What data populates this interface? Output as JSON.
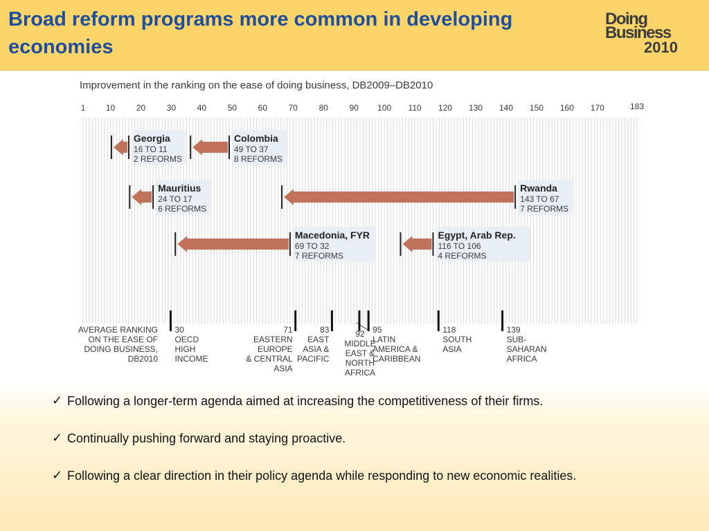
{
  "slide": {
    "title": "Broad reform programs more common in developing economies",
    "logo": {
      "line1": "Doing",
      "line2": "Business",
      "line3": "2010"
    }
  },
  "bullets": [
    {
      "icon": "checkmark-icon",
      "text": "Following a longer-term agenda aimed at increasing the competitiveness of their firms."
    },
    {
      "icon": "checkmark-icon",
      "text": "Continually pushing forward and staying proactive."
    },
    {
      "icon": "checkmark-icon",
      "text": "Following a clear direction in their policy agenda while responding to new economic realities."
    }
  ],
  "chart_data": {
    "type": "range-arrow",
    "title": "Improvement in the ranking on the ease of doing business, DB2009–DB2010",
    "xlim": [
      1,
      183
    ],
    "x_ticks": [
      "1",
      "10",
      "20",
      "30",
      "40",
      "50",
      "60",
      "70",
      "80",
      "90",
      "100",
      "110",
      "120",
      "130",
      "140",
      "150",
      "160",
      "170",
      "183"
    ],
    "grid": true,
    "colors": {
      "arrow": "#c0735a",
      "grid": "#d9d9d9",
      "label_bg": "#e8eef5",
      "text": "#3a3a3a"
    },
    "economies": [
      {
        "name": "Georgia",
        "from": 16,
        "to": 11,
        "rank_text": "16 TO 11",
        "reforms": 2,
        "reforms_text": "2 REFORMS"
      },
      {
        "name": "Colombia",
        "from": 49,
        "to": 37,
        "rank_text": "49 TO 37",
        "reforms": 8,
        "reforms_text": "8 REFORMS"
      },
      {
        "name": "Mauritius",
        "from": 24,
        "to": 17,
        "rank_text": "24 TO 17",
        "reforms": 6,
        "reforms_text": "6 REFORMS"
      },
      {
        "name": "Rwanda",
        "from": 143,
        "to": 67,
        "rank_text": "143 TO 67",
        "reforms": 7,
        "reforms_text": "7 REFORMS"
      },
      {
        "name": "Macedonia, FYR",
        "from": 69,
        "to": 32,
        "rank_text": "69 TO 32",
        "reforms": 7,
        "reforms_text": "7 REFORMS"
      },
      {
        "name": "Egypt, Arab Rep.",
        "from": 116,
        "to": 106,
        "rank_text": "116 TO 106",
        "reforms": 4,
        "reforms_text": "4 REFORMS"
      }
    ],
    "average_label": [
      "AVERAGE RANKING",
      "ON THE EASE OF",
      "DOING BUSINESS,",
      "DB2010"
    ],
    "regions": [
      {
        "rank": 30,
        "lines": [
          "30",
          "OECD",
          "HIGH",
          "INCOME"
        ],
        "align": "left"
      },
      {
        "rank": 71,
        "lines": [
          "71",
          "EASTERN",
          "EUROPE",
          "& CENTRAL",
          "ASIA"
        ],
        "align": "right"
      },
      {
        "rank": 83,
        "lines": [
          "83",
          "EAST",
          "ASIA &",
          "PACIFIC"
        ],
        "align": "right"
      },
      {
        "rank": 92,
        "lines": [
          "92",
          "MIDDLE",
          "EAST &",
          "NORTH",
          "AFRICA"
        ],
        "align": "center"
      },
      {
        "rank": 95,
        "lines": [
          "95",
          "LATIN",
          "AMERICA &",
          "CARIBBEAN"
        ],
        "align": "left"
      },
      {
        "rank": 118,
        "lines": [
          "118",
          "SOUTH",
          "ASIA"
        ],
        "align": "left"
      },
      {
        "rank": 139,
        "lines": [
          "139",
          "SUB-",
          "SAHARAN",
          "AFRICA"
        ],
        "align": "left"
      }
    ]
  }
}
